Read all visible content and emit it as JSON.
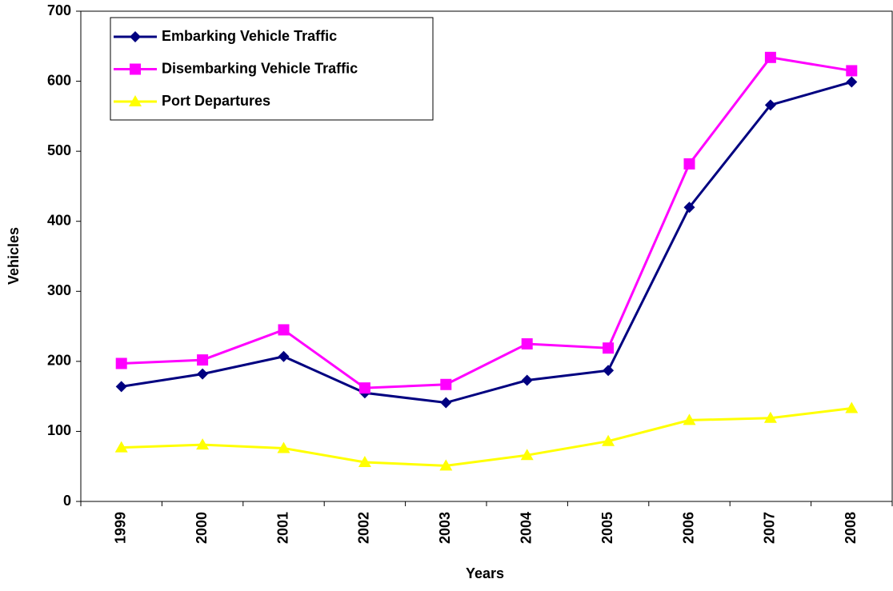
{
  "chart_data": {
    "type": "line",
    "x_label": "Years",
    "y_label": "Vehicles",
    "categories": [
      "1999",
      "2000",
      "2001",
      "2002",
      "2003",
      "2004",
      "2005",
      "2006",
      "2007",
      "2008"
    ],
    "series": [
      {
        "name": "Embarking Vehicle Traffic",
        "color": "#000080",
        "marker": "diamond",
        "values": [
          164,
          182,
          207,
          155,
          141,
          173,
          187,
          420,
          566,
          599
        ]
      },
      {
        "name": "Disembarking Vehicle Traffic",
        "color": "#ff00ff",
        "marker": "square",
        "values": [
          197,
          202,
          245,
          162,
          167,
          225,
          219,
          482,
          634,
          615
        ]
      },
      {
        "name": "Port Departures",
        "color": "#ffff00",
        "marker": "triangle",
        "values": [
          77,
          81,
          76,
          56,
          51,
          66,
          86,
          116,
          119,
          133
        ]
      }
    ],
    "ylim": [
      0,
      700
    ],
    "yticks": [
      0,
      100,
      200,
      300,
      400,
      500,
      600,
      700
    ],
    "legend": "upper left"
  }
}
